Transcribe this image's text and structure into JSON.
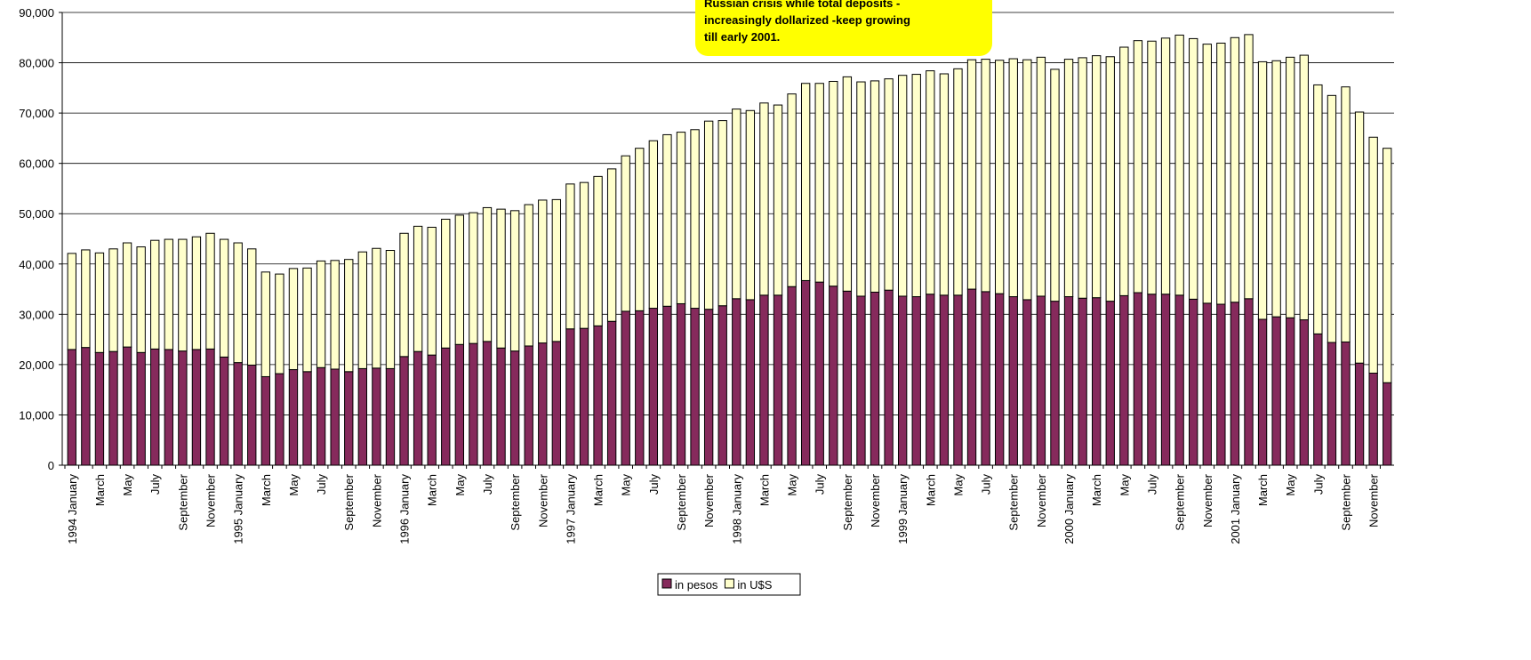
{
  "chart_data": {
    "type": "stacked-bar",
    "annotation": [
      "Russian crisis while total deposits -",
      "increasingly dollarized -keep growing",
      "till early 2001."
    ],
    "categories": [
      "1994 January",
      null,
      "March",
      null,
      "May",
      null,
      "July",
      null,
      "September",
      null,
      "November",
      null,
      "1995 January",
      null,
      "March",
      null,
      "May",
      null,
      "July",
      null,
      "September",
      null,
      "November",
      null,
      "1996 January",
      null,
      "March",
      null,
      "May",
      null,
      "July",
      null,
      "September",
      null,
      "November",
      null,
      "1997 January",
      null,
      "March",
      null,
      "May",
      null,
      "July",
      null,
      "September",
      null,
      "November",
      null,
      "1998 January",
      null,
      "March",
      null,
      "May",
      null,
      "July",
      null,
      "September",
      null,
      "November",
      null,
      "1999 January",
      null,
      "March",
      null,
      "May",
      null,
      "July",
      null,
      "September",
      null,
      "November",
      null,
      "2000 January",
      null,
      "March",
      null,
      "May",
      null,
      "July",
      null,
      "September",
      null,
      "November",
      null,
      "2001 January",
      null,
      "March",
      null,
      "May",
      null,
      "July",
      null,
      "September",
      null,
      "November",
      null
    ],
    "series": [
      {
        "name": "in pesos",
        "color": "#862a5c",
        "values": [
          23000,
          23400,
          22400,
          22600,
          23500,
          22400,
          23100,
          23000,
          22700,
          23000,
          23100,
          21500,
          20400,
          19900,
          17600,
          18200,
          19000,
          18600,
          19400,
          19100,
          18600,
          19200,
          19300,
          19200,
          21600,
          22600,
          21900,
          23300,
          24000,
          24200,
          24600,
          23300,
          22700,
          23700,
          24300,
          24600,
          27100,
          27200,
          27700,
          28600,
          30600,
          30700,
          31200,
          31600,
          32100,
          31200,
          31000,
          31700,
          33100,
          32900,
          33800,
          33800,
          35500,
          36700,
          36400,
          35600,
          34600,
          33600,
          34400,
          34800,
          33600,
          33500,
          34000,
          33800,
          33800,
          35000,
          34500,
          34100,
          33500,
          32900,
          33600,
          32600,
          33500,
          33200,
          33300,
          32600,
          33700,
          34300,
          34000,
          34000,
          33800,
          33000,
          32200,
          32000,
          32400,
          33100,
          29000,
          29500,
          29300,
          28900,
          26100,
          24400,
          24500,
          20300,
          18300,
          16400
        ]
      },
      {
        "name": "in U$S",
        "color": "#ffffcc",
        "values": [
          19100,
          19400,
          19800,
          20400,
          20700,
          21000,
          21600,
          21900,
          22200,
          22400,
          23000,
          23400,
          23800,
          23100,
          20800,
          19800,
          20100,
          20600,
          21200,
          21600,
          22300,
          23200,
          23800,
          23500,
          24500,
          24900,
          25400,
          25600,
          25700,
          26000,
          26600,
          27600,
          27900,
          28100,
          28400,
          28200,
          28800,
          29000,
          29700,
          30300,
          30900,
          32300,
          33300,
          34100,
          34100,
          35500,
          37400,
          36800,
          37700,
          37600,
          38200,
          37800,
          38300,
          39200,
          39500,
          40700,
          42600,
          42600,
          42000,
          42000,
          43900,
          44200,
          44400,
          44000,
          45000,
          45600,
          46200,
          46400,
          47300,
          47700,
          47500,
          46100,
          47200,
          47800,
          48100,
          48600,
          49400,
          50100,
          50300,
          50900,
          51700,
          51800,
          51500,
          51900,
          52600,
          52500,
          51200,
          50900,
          51800,
          52600,
          49500,
          49100,
          50700,
          49900,
          46900,
          46600
        ]
      }
    ],
    "ylim": [
      0,
      90000
    ],
    "yticks": [
      0,
      {
        "value": 10000,
        "label": "10,000"
      },
      {
        "value": 20000,
        "label": "20,000"
      },
      {
        "value": 30000,
        "label": "30,000"
      },
      {
        "value": 40000,
        "label": "40,000"
      },
      {
        "value": 50000,
        "label": "50,000"
      },
      {
        "value": 60000,
        "label": "60,000"
      },
      {
        "value": 70000,
        "label": "70,000"
      },
      {
        "value": 80000,
        "label": "80,000"
      },
      {
        "value": 90000,
        "label": "90,000"
      }
    ],
    "grid": true,
    "legend": "bottom"
  }
}
